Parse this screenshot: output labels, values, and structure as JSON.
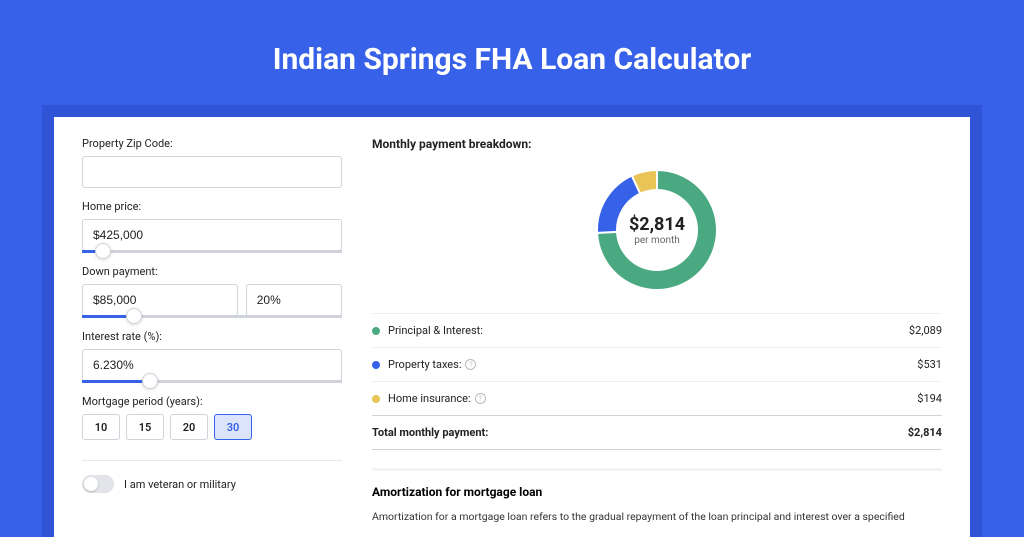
{
  "header": {
    "title": "Indian Springs FHA Loan Calculator"
  },
  "form": {
    "zip_label": "Property Zip Code:",
    "zip_value": "",
    "home_price_label": "Home price:",
    "home_price_value": "$425,000",
    "home_price_slider_pct": 8,
    "down_payment_label": "Down payment:",
    "down_payment_value": "$85,000",
    "down_payment_pct": "20%",
    "down_payment_slider_pct": 20,
    "interest_label": "Interest rate (%):",
    "interest_value": "6.230%",
    "interest_slider_pct": 26,
    "period_label": "Mortgage period (years):",
    "periods": [
      "10",
      "15",
      "20",
      "30"
    ],
    "period_selected_index": 3,
    "veteran_label": "I am veteran or military"
  },
  "breakdown": {
    "title": "Monthly payment breakdown:",
    "center_amount": "$2,814",
    "center_sub": "per month",
    "donut": {
      "type": "donut",
      "slices": [
        {
          "key": "pi",
          "value": 2089,
          "color": "#4aa981"
        },
        {
          "key": "tax",
          "value": 531,
          "color": "#3761e8"
        },
        {
          "key": "ins",
          "value": 194,
          "color": "#e9c456"
        }
      ],
      "background": "#ffffff",
      "ring_width": 20
    },
    "items": [
      {
        "label": "Principal & Interest:",
        "value": "$2,089",
        "color": "#4aa981",
        "info": false
      },
      {
        "label": "Property taxes:",
        "value": "$531",
        "color": "#3761e8",
        "info": true
      },
      {
        "label": "Home insurance:",
        "value": "$194",
        "color": "#e9c456",
        "info": true
      }
    ],
    "total_label": "Total monthly payment:",
    "total_value": "$2,814"
  },
  "amortization": {
    "title": "Amortization for mortgage loan",
    "text": "Amortization for a mortgage loan refers to the gradual repayment of the loan principal and interest over a specified"
  }
}
